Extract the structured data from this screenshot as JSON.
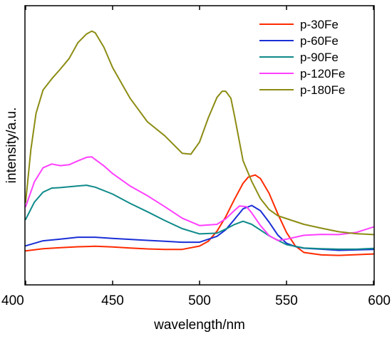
{
  "chart_data": {
    "type": "line",
    "xlabel": "wavelength/nm",
    "ylabel": "intensity/a.u.",
    "xlim": [
      400,
      600
    ],
    "ylim": [
      0,
      100
    ],
    "x_ticks": [
      400,
      450,
      500,
      550,
      600
    ],
    "y_ticks_shown": false,
    "grid": false,
    "legend_position": "top-right",
    "series": [
      {
        "name": "p-30Fe",
        "color": "#ff2a00",
        "x": [
          400,
          410,
          420,
          430,
          440,
          450,
          460,
          470,
          480,
          490,
          500,
          505,
          510,
          515,
          520,
          525,
          528,
          532,
          535,
          540,
          545,
          550,
          555,
          560,
          570,
          580,
          590,
          600
        ],
        "y": [
          8.3,
          9.2,
          9.6,
          10.0,
          10.2,
          9.9,
          9.5,
          9.1,
          8.9,
          8.9,
          10.3,
          12.3,
          16.5,
          22.5,
          29.8,
          36.6,
          39.2,
          40.1,
          38.6,
          32.4,
          23.8,
          16.0,
          10.4,
          7.6,
          6.6,
          6.4,
          6.7,
          7.0
        ]
      },
      {
        "name": "p-60Fe",
        "color": "#1a2fd6",
        "x": [
          400,
          410,
          420,
          430,
          440,
          450,
          460,
          470,
          480,
          490,
          500,
          510,
          515,
          520,
          525,
          530,
          535,
          540,
          545,
          550,
          555,
          560,
          570,
          580,
          590,
          600
        ],
        "y": [
          10.4,
          12.5,
          13.2,
          14.0,
          14.0,
          13.5,
          13.1,
          12.7,
          12.3,
          11.9,
          11.9,
          14.4,
          17.1,
          21.4,
          25.9,
          27.3,
          25.1,
          20.3,
          14.9,
          11.5,
          10.1,
          9.4,
          9.0,
          8.5,
          8.7,
          8.9
        ]
      },
      {
        "name": "p-90Fe",
        "color": "#0f8a8a",
        "x": [
          400,
          405,
          410,
          415,
          420,
          430,
          435,
          440,
          450,
          460,
          470,
          480,
          490,
          500,
          510,
          515,
          520,
          525,
          530,
          540,
          550,
          560,
          570,
          580,
          590,
          600
        ],
        "y": [
          21.5,
          28.7,
          32.9,
          34.6,
          34.8,
          35.5,
          35.8,
          35.0,
          32.1,
          28.2,
          24.7,
          21.0,
          17.6,
          15.4,
          15.7,
          17.4,
          19.3,
          20.7,
          19.4,
          14.6,
          10.9,
          9.5,
          9.2,
          9.0,
          9.0,
          9.3
        ]
      },
      {
        "name": "p-120Fe",
        "color": "#ff40ff",
        "x": [
          400,
          405,
          410,
          415,
          420,
          425,
          430,
          435,
          438,
          440,
          445,
          450,
          460,
          470,
          480,
          490,
          500,
          510,
          515,
          520,
          523,
          527,
          530,
          535,
          540,
          545,
          550,
          560,
          570,
          580,
          590,
          600
        ],
        "y": [
          26.8,
          37.2,
          43.1,
          44.7,
          44.0,
          44.4,
          46.0,
          47.5,
          47.7,
          46.6,
          43.9,
          40.7,
          35.5,
          31.4,
          26.8,
          22.0,
          18.9,
          19.4,
          21.7,
          25.2,
          27.1,
          26.8,
          24.2,
          18.9,
          14.7,
          12.6,
          13.2,
          14.8,
          15.2,
          15.1,
          16.0,
          18.3
        ]
      },
      {
        "name": "p-180Fe",
        "color": "#8c8c14",
        "x": [
          400,
          403,
          406,
          410,
          415,
          420,
          425,
          430,
          435,
          438,
          440,
          445,
          450,
          460,
          470,
          480,
          490,
          495,
          500,
          505,
          510,
          513,
          515,
          518,
          520,
          525,
          530,
          535,
          540,
          545,
          550,
          560,
          570,
          580,
          590,
          600
        ],
        "y": [
          28.7,
          50.7,
          66.0,
          75.7,
          80.4,
          84.5,
          88.9,
          95.5,
          99.2,
          100.4,
          99.7,
          93.6,
          85.1,
          72.3,
          62.4,
          56.5,
          49.2,
          48.8,
          53.9,
          64.0,
          72.6,
          75.2,
          75.2,
          72.3,
          65.2,
          46.1,
          37.4,
          30.2,
          25.6,
          23.0,
          21.8,
          19.4,
          17.8,
          16.3,
          15.5,
          15.1
        ]
      }
    ]
  }
}
